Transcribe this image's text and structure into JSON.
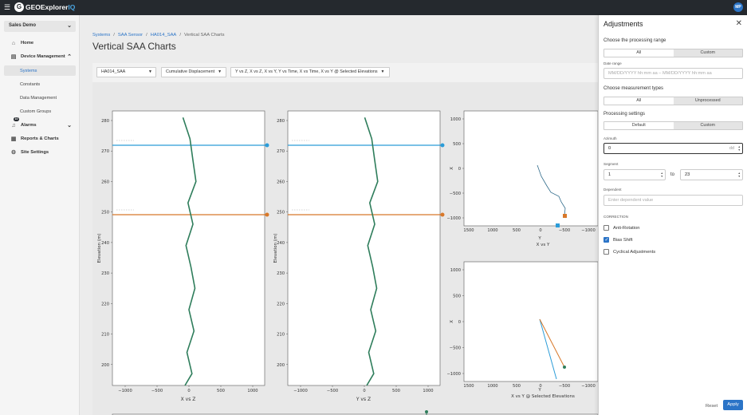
{
  "app": {
    "logo": "GEOExplorer",
    "logo_suffix": "IQ",
    "avatar_initials": "MP"
  },
  "sidebar": {
    "org": "Sales Demo",
    "items": [
      {
        "label": "Home",
        "icon": "home-icon"
      },
      {
        "label": "Device Management",
        "icon": "device-icon"
      },
      {
        "label": "Alarms",
        "icon": "bell-icon",
        "badge": "10"
      },
      {
        "label": "Reports & Charts",
        "icon": "report-icon"
      },
      {
        "label": "Site Settings",
        "icon": "gear-icon"
      }
    ],
    "sub_items": [
      "Systems",
      "Constants",
      "Data Management",
      "Custom Groups"
    ]
  },
  "breadcrumb": [
    "Systems",
    "SAA Sensor",
    "HA014_SAA",
    "Vertical SAA Charts"
  ],
  "page_title": "Vertical SAA Charts",
  "filters": {
    "sensor": "HA014_SAA",
    "measure": "Cumulative Displacement",
    "views": "Y vs Z, X vs Z, X vs Y, Y vs Time, X vs Time, X vs Y @ Selected Elevations"
  },
  "chart_data": [
    {
      "type": "line",
      "xlabel": "X vs Z",
      "ylabel": "Elevation (m)",
      "xlim": [
        -1000,
        1000
      ],
      "ylim": [
        190,
        280
      ],
      "xticks": [
        "−1000",
        "−500",
        "0",
        "500",
        "1000"
      ],
      "yticks": [
        "190",
        "200",
        "210",
        "220",
        "230",
        "240",
        "250",
        "260",
        "270",
        "280"
      ],
      "series": [
        {
          "color": "#2e7d5b",
          "x": [
            -20,
            15,
            -10,
            25,
            0,
            30,
            10,
            -15,
            20,
            -5,
            35,
            20,
            5,
            -30
          ],
          "y": [
            190,
            197,
            204,
            211,
            218,
            225,
            232,
            239,
            246,
            253,
            260,
            267,
            274,
            281
          ]
        },
        {
          "color": "#2b9cd8",
          "x": [
            -1000,
            1000
          ],
          "y": [
            271,
            271
          ]
        },
        {
          "color": "#d8782a",
          "x": [
            -1000,
            1000
          ],
          "y": [
            248,
            248
          ]
        }
      ]
    },
    {
      "type": "line",
      "xlabel": "Y vs Z",
      "ylabel": "Elevation (m)",
      "xlim": [
        -1000,
        1000
      ],
      "ylim": [
        190,
        280
      ],
      "xticks": [
        "−1000",
        "−500",
        "0",
        "500",
        "1000"
      ],
      "yticks": [
        "190",
        "200",
        "210",
        "220",
        "230",
        "240",
        "250",
        "260",
        "270",
        "280"
      ]
    },
    {
      "type": "scatter",
      "xlabel": "X vs Y",
      "ylabel": "X",
      "xaxis_letter": "Y",
      "yticks": [
        "1000",
        "500",
        "0",
        "−500",
        "−1000"
      ],
      "xticks": [
        "1500",
        "1000",
        "500",
        "0",
        "−500",
        "−1000"
      ]
    },
    {
      "type": "line",
      "xlabel": "X vs Y @ Selected Elevations",
      "ylabel": "X",
      "xaxis_letter": "Y",
      "yticks": [
        "1000",
        "500",
        "0",
        "−500",
        "−1000"
      ],
      "xticks": [
        "1500",
        "1000",
        "500",
        "0",
        "−500",
        "−1000"
      ]
    }
  ],
  "drawer": {
    "title": "Adjustments",
    "processing_range_label": "Choose the processing range",
    "range_options": [
      "All",
      "Custom"
    ],
    "range_selected": "Custom",
    "date_range_label": "Date range",
    "date_range_placeholder": "MM/DD/YYYY hh:mm aa – MM/DD/YYYY hh:mm aa",
    "measurement_types_label": "Choose measurement types",
    "measurement_options": [
      "All",
      "Unprocessed"
    ],
    "measurement_selected": "Unprocessed",
    "processing_settings_label": "Processing settings",
    "settings_options": [
      "Default",
      "Custom"
    ],
    "settings_selected": "Custom",
    "azimuth_label": "Azimuth",
    "azimuth_value": "0",
    "azimuth_unit": "dd",
    "segment_label": "Segment",
    "segment_from": "1",
    "segment_to_label": "to",
    "segment_to": "23",
    "dependent_label": "Dependent",
    "dependent_placeholder": "Enter dependent value",
    "correction_label": "CORRECTION",
    "corrections": [
      {
        "label": "Anti-Rotation",
        "checked": false
      },
      {
        "label": "Bias Shift",
        "checked": true
      },
      {
        "label": "Cyclical Adjustments",
        "checked": false
      }
    ],
    "reset_label": "Reset",
    "apply_label": "Apply"
  },
  "colors": {
    "accent": "#2b74c7",
    "topbar": "#25292e",
    "profile_line": "#2e7d5b",
    "elev_blue": "#2b9cd8",
    "elev_orange": "#d8782a"
  }
}
